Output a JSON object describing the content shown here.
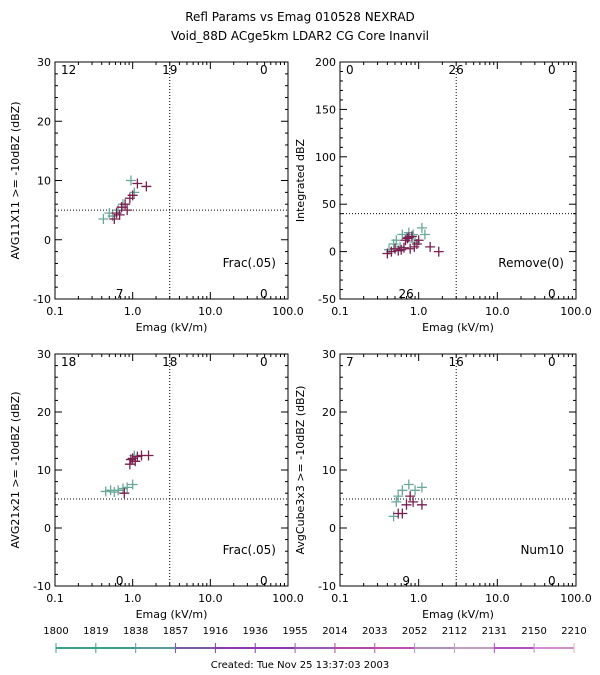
{
  "header": {
    "title_line1": "Refl Params vs Emag   010528  NEXRAD",
    "title_line2": "Void_88D ACge5km LDAR2 CG Core Inanvil"
  },
  "colors": {
    "series_light": "#6aa99a",
    "series_dark": "#7a2050",
    "axis": "#000000"
  },
  "chart_data": [
    {
      "type": "scatter",
      "xlabel": "Emag (kV/m)",
      "ylabel": "AVG11X11 >= -10dBZ (dBZ)",
      "xscale": "log",
      "xlim": [
        0.1,
        100
      ],
      "ylim": [
        -10,
        30
      ],
      "xticks": [
        "0.1",
        "1.0",
        "10.0",
        "100.0"
      ],
      "yticks": [
        "-10",
        "0",
        "10",
        "20",
        "30"
      ],
      "xthreshold": 3,
      "ythreshold": 5,
      "quadrant_counts": {
        "top_left": "12",
        "top_mid": "19",
        "top_right": "0",
        "bottom_mid": "7",
        "bottom_right": "0"
      },
      "annotation": "Frac(.05)",
      "series": [
        {
          "color": "#6aa99a",
          "points": [
            [
              0.42,
              3.5
            ],
            [
              0.5,
              4.5
            ],
            [
              0.55,
              4.0
            ],
            [
              0.65,
              5.0
            ],
            [
              0.75,
              6.0
            ],
            [
              0.95,
              10.0
            ],
            [
              1.05,
              8.0
            ]
          ]
        },
        {
          "color": "#7a2050",
          "points": [
            [
              0.58,
              3.5
            ],
            [
              0.62,
              4.5
            ],
            [
              0.68,
              4.2
            ],
            [
              0.72,
              5.5
            ],
            [
              0.8,
              6.0
            ],
            [
              0.85,
              5.0
            ],
            [
              0.92,
              7.0
            ],
            [
              1.0,
              7.5
            ],
            [
              1.15,
              9.5
            ],
            [
              1.5,
              9.0
            ]
          ]
        }
      ]
    },
    {
      "type": "scatter",
      "xlabel": "Emag (kV/m)",
      "ylabel": "Integrated dBZ",
      "xscale": "log",
      "xlim": [
        0.1,
        100
      ],
      "ylim": [
        -50,
        200
      ],
      "xticks": [
        "0.1",
        "1.0",
        "10.0",
        "100.0"
      ],
      "yticks": [
        "-50",
        "0",
        "50",
        "100",
        "150",
        "200"
      ],
      "xthreshold": 3,
      "ythreshold": 40,
      "quadrant_counts": {
        "top_left": "0",
        "top_mid": "26",
        "top_right": "0",
        "bottom_mid": "26",
        "bottom_right": "0"
      },
      "annotation": "Remove(0)",
      "series": [
        {
          "color": "#6aa99a",
          "points": [
            [
              0.42,
              2
            ],
            [
              0.48,
              8
            ],
            [
              0.52,
              12
            ],
            [
              0.58,
              5
            ],
            [
              0.62,
              18
            ],
            [
              0.7,
              15
            ],
            [
              0.75,
              20
            ],
            [
              0.85,
              18
            ],
            [
              0.9,
              10
            ],
            [
              1.1,
              25
            ],
            [
              1.2,
              18
            ]
          ]
        },
        {
          "color": "#7a2050",
          "points": [
            [
              0.4,
              -2
            ],
            [
              0.45,
              0
            ],
            [
              0.5,
              3
            ],
            [
              0.55,
              1
            ],
            [
              0.6,
              2
            ],
            [
              0.65,
              4
            ],
            [
              0.68,
              12
            ],
            [
              0.72,
              14
            ],
            [
              0.75,
              15
            ],
            [
              0.78,
              3
            ],
            [
              0.82,
              16
            ],
            [
              0.88,
              5
            ],
            [
              0.95,
              8
            ],
            [
              1.0,
              12
            ],
            [
              1.4,
              5
            ],
            [
              1.8,
              0
            ]
          ]
        }
      ]
    },
    {
      "type": "scatter",
      "xlabel": "Emag (kV/m)",
      "ylabel": "AVG21x21 >= -10dBZ (dBZ)",
      "xscale": "log",
      "xlim": [
        0.1,
        100
      ],
      "ylim": [
        -10,
        30
      ],
      "xticks": [
        "0.1",
        "1.0",
        "10.0",
        "100.0"
      ],
      "yticks": [
        "-10",
        "0",
        "10",
        "20",
        "30"
      ],
      "xthreshold": 3,
      "ythreshold": 5,
      "quadrant_counts": {
        "top_left": "18",
        "top_mid": "18",
        "top_right": "0",
        "bottom_mid": "0",
        "bottom_right": "0"
      },
      "annotation": "Frac(.05)",
      "series": [
        {
          "color": "#6aa99a",
          "points": [
            [
              0.45,
              6.3
            ],
            [
              0.52,
              6.5
            ],
            [
              0.58,
              6.2
            ],
            [
              0.65,
              6.5
            ],
            [
              0.75,
              6.8
            ],
            [
              0.85,
              7.0
            ],
            [
              1.0,
              7.5
            ],
            [
              1.05,
              12.5
            ]
          ]
        },
        {
          "color": "#7a2050",
          "points": [
            [
              0.78,
              6.0
            ],
            [
              0.92,
              11.0
            ],
            [
              0.95,
              11.8
            ],
            [
              1.0,
              12.0
            ],
            [
              1.08,
              11.5
            ],
            [
              1.15,
              12.3
            ],
            [
              1.3,
              12.5
            ],
            [
              1.6,
              12.5
            ]
          ]
        }
      ]
    },
    {
      "type": "scatter",
      "xlabel": "Emag (kV/m)",
      "ylabel": "AvgCube3x3 >= -10dBZ (dBZ)",
      "xscale": "log",
      "xlim": [
        0.1,
        100
      ],
      "ylim": [
        -10,
        30
      ],
      "xticks": [
        "0.1",
        "1.0",
        "10.0",
        "100.0"
      ],
      "yticks": [
        "-10",
        "0",
        "10",
        "20",
        "30"
      ],
      "xthreshold": 3,
      "ythreshold": 5,
      "quadrant_counts": {
        "top_left": "7",
        "top_mid": "16",
        "top_right": "0",
        "bottom_mid": "9",
        "bottom_right": "0"
      },
      "annotation": "Num10",
      "series": [
        {
          "color": "#6aa99a",
          "points": [
            [
              0.48,
              2.0
            ],
            [
              0.52,
              4.5
            ],
            [
              0.55,
              5.5
            ],
            [
              0.62,
              6.5
            ],
            [
              0.75,
              7.5
            ],
            [
              0.9,
              6.5
            ],
            [
              1.1,
              7.0
            ]
          ]
        },
        {
          "color": "#7a2050",
          "points": [
            [
              0.55,
              2.5
            ],
            [
              0.62,
              2.5
            ],
            [
              0.7,
              4.0
            ],
            [
              0.78,
              5.5
            ],
            [
              0.85,
              4.5
            ],
            [
              1.1,
              4.0
            ]
          ]
        }
      ]
    }
  ],
  "timeline": {
    "labels": [
      "1800",
      "1819",
      "1838",
      "1857",
      "1916",
      "1936",
      "1955",
      "2014",
      "2033",
      "2052",
      "2112",
      "2131",
      "2150",
      "2210"
    ],
    "colors": [
      "#3aa08a",
      "#3aa08a",
      "#5a9aa0",
      "#7a5aa0",
      "#8a3ab0",
      "#8a3ab0",
      "#9a5ab0",
      "#b04aa0",
      "#c050b0",
      "#b090c0",
      "#c0a0c0",
      "#b050c0",
      "#d090d0",
      "#e0b0b0"
    ]
  },
  "footer": {
    "created": "Created: Tue Nov 25 13:37:03 2003"
  }
}
